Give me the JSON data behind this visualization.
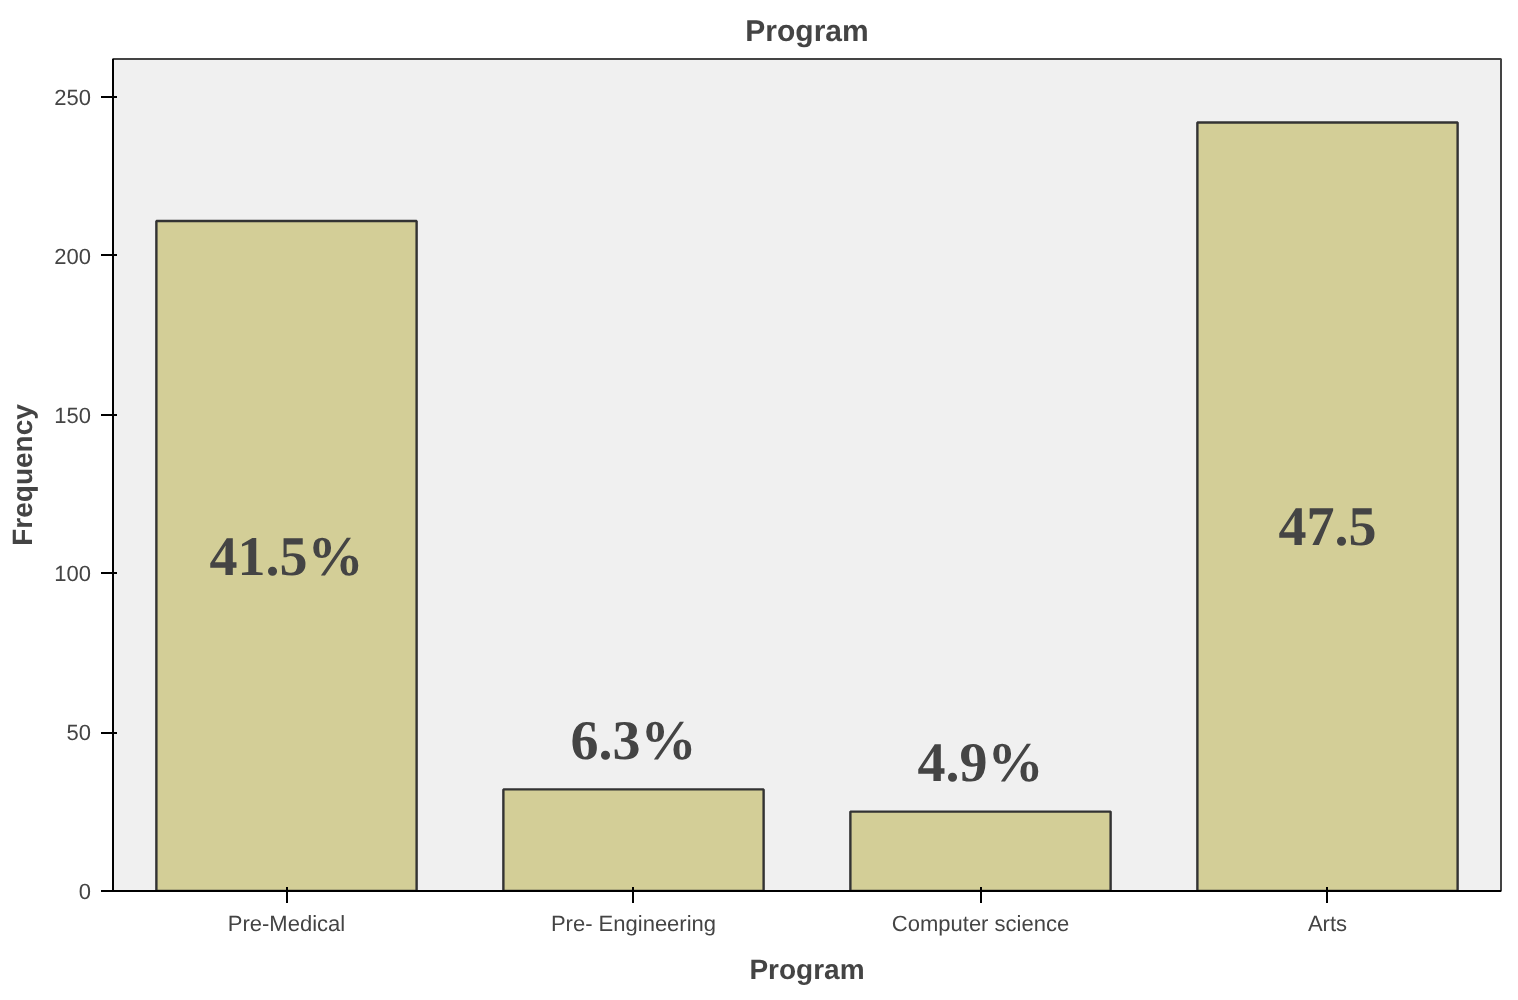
{
  "chart_data": {
    "type": "bar",
    "title": "Program",
    "xlabel": "Program",
    "ylabel": "Frequency",
    "categories": [
      "Pre-Medical",
      "Pre- Engineering",
      "Computer science",
      "Arts"
    ],
    "values": [
      211,
      32,
      25,
      242
    ],
    "annotations": [
      "41.5%",
      "6.3%",
      "4.9%",
      "47.5"
    ],
    "color": "#d3ce97",
    "ylim": [
      0,
      262
    ],
    "yticks": [
      0,
      50,
      100,
      150,
      200,
      250
    ],
    "grid": false
  }
}
